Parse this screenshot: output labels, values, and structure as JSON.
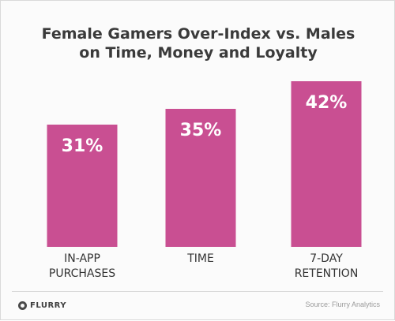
{
  "chart_data": {
    "type": "bar",
    "title_lines": [
      "Female Gamers Over-Index vs. Males",
      "on Time, Money and Loyalty"
    ],
    "categories": [
      [
        "IN-APP",
        "PURCHASES"
      ],
      [
        "TIME"
      ],
      [
        "7-DAY",
        "RETENTION"
      ]
    ],
    "values": [
      31,
      35,
      42
    ],
    "value_labels": [
      "31%",
      "35%",
      "42%"
    ],
    "ylim": [
      0,
      50
    ],
    "grid": false,
    "legend": "none",
    "bar_color": "#c94f92",
    "label_color": "#ffffff"
  },
  "footer": {
    "brand": "FLURRY",
    "source": "Source: Flurry Analytics"
  }
}
